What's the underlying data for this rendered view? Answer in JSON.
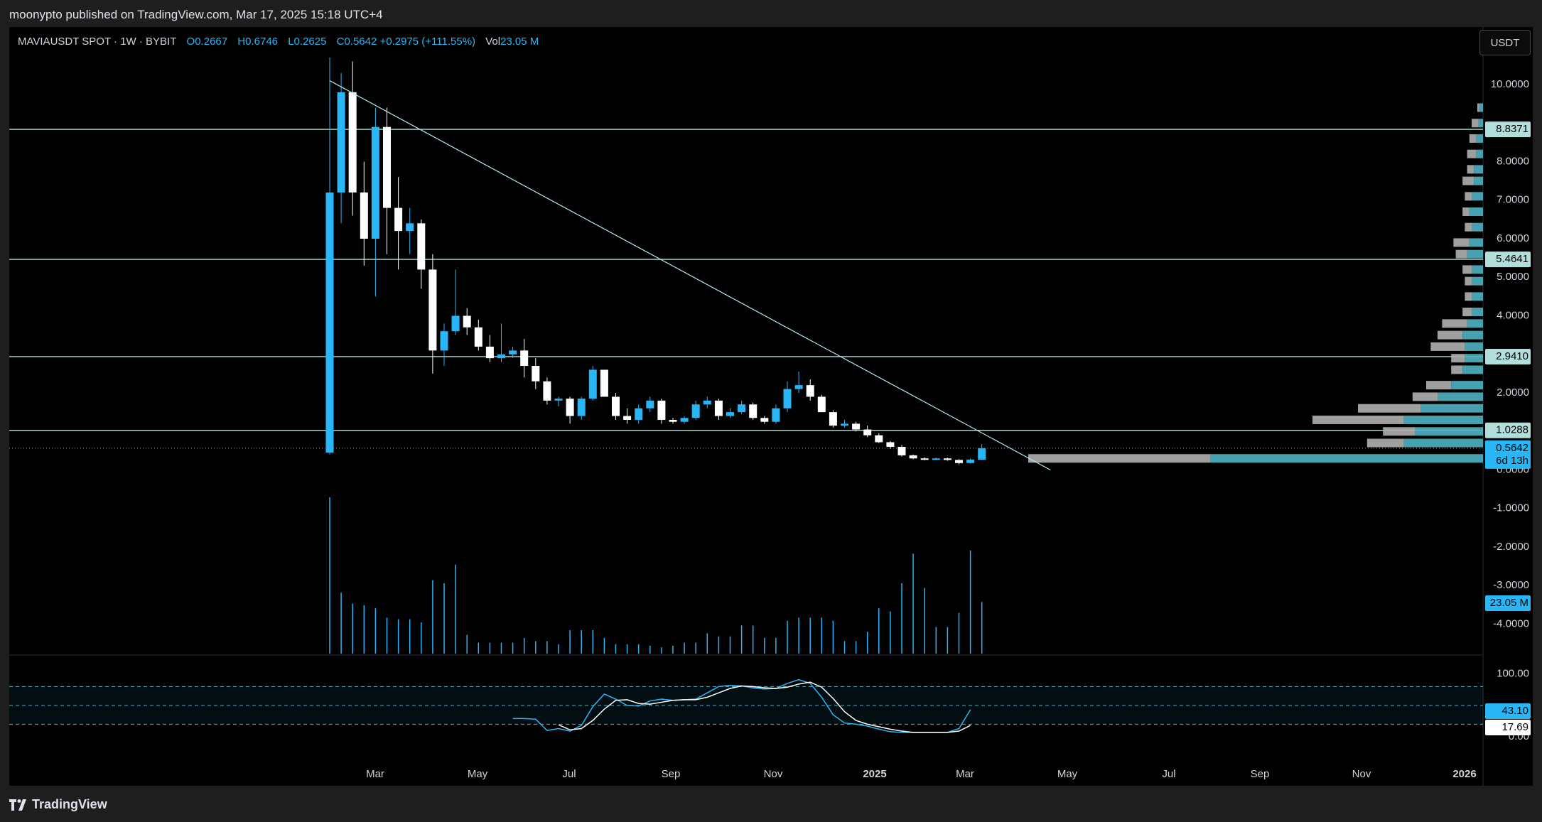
{
  "header": {
    "publisher_line": "moonypto published on TradingView.com, Mar 17, 2025 15:18 UTC+4"
  },
  "legend": {
    "symbol": "MAVIAUSDT SPOT · 1W · BYBIT",
    "o_label": "O",
    "o": "0.2667",
    "h_label": "H",
    "h": "0.6746",
    "l_label": "L",
    "l": "0.2625",
    "c_label": "C",
    "c": "0.5642",
    "change": "+0.2975 (+111.55%)",
    "vol_label": "Vol",
    "vol": "23.05 M"
  },
  "currency_button": "USDT",
  "footer": {
    "brand": "TradingView"
  },
  "colors": {
    "up": "#29b6f6",
    "down": "#ffffff",
    "hline": "#a8e0d8",
    "trend": "#b2ebf2",
    "stoch_k": "#29b6f6",
    "stoch_d": "#ffffff"
  },
  "chart_data": {
    "type": "candlestick",
    "x_ticks": [
      "Mar",
      "May",
      "Jul",
      "Sep",
      "Nov",
      "2025",
      "Mar",
      "May",
      "Jul",
      "Sep",
      "Nov",
      "2026"
    ],
    "y_ticks": [
      "10.0000",
      "8.0000",
      "7.0000",
      "6.0000",
      "5.0000",
      "4.0000",
      "2.0000",
      "0.0000",
      "-1.0000",
      "-2.0000",
      "-3.0000",
      "-4.0000"
    ],
    "stoch_ticks": [
      "100.00",
      "0.00"
    ],
    "price_tags": [
      {
        "value": 8.8371,
        "label": "8.8371"
      },
      {
        "value": 5.4641,
        "label": "5.4641"
      },
      {
        "value": 2.941,
        "label": "2.9410"
      },
      {
        "value": 1.0288,
        "label": "1.0288"
      }
    ],
    "last_price": {
      "value": 0.5642,
      "label": "0.5642",
      "countdown": "6d 13h"
    },
    "volume_tag": "23.05 M",
    "stoch_tags": {
      "k": "43.10",
      "d": "17.69"
    },
    "trendline": {
      "from": [
        "2024-02-05",
        10.1
      ],
      "to": [
        "2025-04-21",
        0.0
      ]
    },
    "candles": [
      {
        "d": "2024-02-05",
        "o": 0.45,
        "h": 10.7,
        "l": 0.4,
        "c": 7.2,
        "v": 100
      },
      {
        "d": "2024-02-12",
        "o": 7.2,
        "h": 10.3,
        "l": 6.4,
        "c": 9.8,
        "v": 39
      },
      {
        "d": "2024-02-19",
        "o": 9.8,
        "h": 10.6,
        "l": 6.6,
        "c": 7.2,
        "v": 32
      },
      {
        "d": "2024-02-26",
        "o": 7.2,
        "h": 8.0,
        "l": 5.3,
        "c": 6.0,
        "v": 31
      },
      {
        "d": "2024-03-04",
        "o": 6.0,
        "h": 9.4,
        "l": 4.5,
        "c": 8.9,
        "v": 29
      },
      {
        "d": "2024-03-11",
        "o": 8.9,
        "h": 9.4,
        "l": 5.6,
        "c": 6.8,
        "v": 23
      },
      {
        "d": "2024-03-18",
        "o": 6.8,
        "h": 7.6,
        "l": 5.2,
        "c": 6.2,
        "v": 22
      },
      {
        "d": "2024-03-25",
        "o": 6.2,
        "h": 6.8,
        "l": 5.6,
        "c": 6.4,
        "v": 22
      },
      {
        "d": "2024-04-01",
        "o": 6.4,
        "h": 6.5,
        "l": 4.7,
        "c": 5.2,
        "v": 20
      },
      {
        "d": "2024-04-08",
        "o": 5.2,
        "h": 5.6,
        "l": 2.5,
        "c": 3.1,
        "v": 47
      },
      {
        "d": "2024-04-15",
        "o": 3.1,
        "h": 3.8,
        "l": 2.7,
        "c": 3.6,
        "v": 45
      },
      {
        "d": "2024-04-22",
        "o": 3.6,
        "h": 5.2,
        "l": 3.5,
        "c": 4.0,
        "v": 57
      },
      {
        "d": "2024-04-29",
        "o": 4.0,
        "h": 4.2,
        "l": 3.5,
        "c": 3.7,
        "v": 12
      },
      {
        "d": "2024-05-06",
        "o": 3.7,
        "h": 3.9,
        "l": 3.1,
        "c": 3.2,
        "v": 7
      },
      {
        "d": "2024-05-13",
        "o": 3.2,
        "h": 3.5,
        "l": 2.8,
        "c": 2.9,
        "v": 7
      },
      {
        "d": "2024-05-20",
        "o": 2.9,
        "h": 3.8,
        "l": 2.8,
        "c": 3.0,
        "v": 7
      },
      {
        "d": "2024-05-27",
        "o": 3.0,
        "h": 3.2,
        "l": 2.9,
        "c": 3.1,
        "v": 7
      },
      {
        "d": "2024-06-03",
        "o": 3.1,
        "h": 3.4,
        "l": 2.4,
        "c": 2.7,
        "v": 10
      },
      {
        "d": "2024-06-10",
        "o": 2.7,
        "h": 2.9,
        "l": 2.1,
        "c": 2.3,
        "v": 8
      },
      {
        "d": "2024-06-17",
        "o": 2.3,
        "h": 2.4,
        "l": 1.7,
        "c": 1.8,
        "v": 8
      },
      {
        "d": "2024-06-24",
        "o": 1.8,
        "h": 1.9,
        "l": 1.65,
        "c": 1.85,
        "v": 6
      },
      {
        "d": "2024-07-01",
        "o": 1.85,
        "h": 1.9,
        "l": 1.2,
        "c": 1.4,
        "v": 15
      },
      {
        "d": "2024-07-08",
        "o": 1.4,
        "h": 1.9,
        "l": 1.3,
        "c": 1.85,
        "v": 15
      },
      {
        "d": "2024-07-15",
        "o": 1.85,
        "h": 2.7,
        "l": 1.8,
        "c": 2.6,
        "v": 15
      },
      {
        "d": "2024-07-22",
        "o": 2.6,
        "h": 2.6,
        "l": 1.9,
        "c": 1.9,
        "v": 10
      },
      {
        "d": "2024-07-29",
        "o": 1.9,
        "h": 2.0,
        "l": 1.3,
        "c": 1.4,
        "v": 6
      },
      {
        "d": "2024-08-05",
        "o": 1.4,
        "h": 1.6,
        "l": 1.2,
        "c": 1.3,
        "v": 6
      },
      {
        "d": "2024-08-12",
        "o": 1.3,
        "h": 1.7,
        "l": 1.2,
        "c": 1.6,
        "v": 6
      },
      {
        "d": "2024-08-19",
        "o": 1.6,
        "h": 1.9,
        "l": 1.5,
        "c": 1.8,
        "v": 5
      },
      {
        "d": "2024-08-26",
        "o": 1.8,
        "h": 1.85,
        "l": 1.2,
        "c": 1.3,
        "v": 4
      },
      {
        "d": "2024-09-02",
        "o": 1.3,
        "h": 1.35,
        "l": 1.2,
        "c": 1.25,
        "v": 5
      },
      {
        "d": "2024-09-09",
        "o": 1.25,
        "h": 1.4,
        "l": 1.2,
        "c": 1.35,
        "v": 7
      },
      {
        "d": "2024-09-16",
        "o": 1.35,
        "h": 1.8,
        "l": 1.3,
        "c": 1.7,
        "v": 7
      },
      {
        "d": "2024-09-23",
        "o": 1.7,
        "h": 1.9,
        "l": 1.6,
        "c": 1.8,
        "v": 13
      },
      {
        "d": "2024-09-30",
        "o": 1.8,
        "h": 1.85,
        "l": 1.3,
        "c": 1.4,
        "v": 11
      },
      {
        "d": "2024-10-07",
        "o": 1.4,
        "h": 1.6,
        "l": 1.35,
        "c": 1.5,
        "v": 11
      },
      {
        "d": "2024-10-14",
        "o": 1.5,
        "h": 1.8,
        "l": 1.45,
        "c": 1.7,
        "v": 18
      },
      {
        "d": "2024-10-21",
        "o": 1.7,
        "h": 1.75,
        "l": 1.3,
        "c": 1.35,
        "v": 18
      },
      {
        "d": "2024-10-28",
        "o": 1.35,
        "h": 1.4,
        "l": 1.2,
        "c": 1.25,
        "v": 10
      },
      {
        "d": "2024-11-04",
        "o": 1.25,
        "h": 1.7,
        "l": 1.2,
        "c": 1.6,
        "v": 10
      },
      {
        "d": "2024-11-11",
        "o": 1.6,
        "h": 2.3,
        "l": 1.5,
        "c": 2.1,
        "v": 21
      },
      {
        "d": "2024-11-18",
        "o": 2.1,
        "h": 2.55,
        "l": 2.0,
        "c": 2.2,
        "v": 23
      },
      {
        "d": "2024-11-25",
        "o": 2.2,
        "h": 2.35,
        "l": 1.8,
        "c": 1.9,
        "v": 23
      },
      {
        "d": "2024-12-02",
        "o": 1.9,
        "h": 1.95,
        "l": 1.5,
        "c": 1.5,
        "v": 23
      },
      {
        "d": "2024-12-09",
        "o": 1.5,
        "h": 1.55,
        "l": 1.1,
        "c": 1.15,
        "v": 21
      },
      {
        "d": "2024-12-16",
        "o": 1.15,
        "h": 1.3,
        "l": 1.1,
        "c": 1.2,
        "v": 8
      },
      {
        "d": "2024-12-23",
        "o": 1.2,
        "h": 1.25,
        "l": 1.0,
        "c": 1.05,
        "v": 8
      },
      {
        "d": "2024-12-30",
        "o": 1.05,
        "h": 1.15,
        "l": 0.85,
        "c": 0.9,
        "v": 14
      },
      {
        "d": "2025-01-06",
        "o": 0.9,
        "h": 0.95,
        "l": 0.7,
        "c": 0.72,
        "v": 29
      },
      {
        "d": "2025-01-13",
        "o": 0.72,
        "h": 0.75,
        "l": 0.55,
        "c": 0.6,
        "v": 27
      },
      {
        "d": "2025-01-20",
        "o": 0.6,
        "h": 0.65,
        "l": 0.35,
        "c": 0.38,
        "v": 45
      },
      {
        "d": "2025-01-27",
        "o": 0.38,
        "h": 0.4,
        "l": 0.28,
        "c": 0.3,
        "v": 64
      },
      {
        "d": "2025-02-03",
        "o": 0.3,
        "h": 0.33,
        "l": 0.25,
        "c": 0.28,
        "v": 42
      },
      {
        "d": "2025-02-10",
        "o": 0.28,
        "h": 0.32,
        "l": 0.26,
        "c": 0.3,
        "v": 17
      },
      {
        "d": "2025-02-17",
        "o": 0.3,
        "h": 0.32,
        "l": 0.24,
        "c": 0.26,
        "v": 17
      },
      {
        "d": "2025-02-24",
        "o": 0.26,
        "h": 0.28,
        "l": 0.15,
        "c": 0.18,
        "v": 26
      },
      {
        "d": "2025-03-03",
        "o": 0.18,
        "h": 0.3,
        "l": 0.16,
        "c": 0.27,
        "v": 66
      },
      {
        "d": "2025-03-10",
        "o": 0.2667,
        "h": 0.6746,
        "l": 0.2625,
        "c": 0.5642,
        "v": 33
      }
    ],
    "stoch": {
      "k": [
        [
          16,
          29
        ],
        [
          17,
          29
        ],
        [
          18,
          28
        ],
        [
          19,
          10
        ],
        [
          20,
          13
        ],
        [
          21,
          9
        ],
        [
          22,
          18
        ],
        [
          23,
          48
        ],
        [
          24,
          68
        ],
        [
          25,
          60
        ],
        [
          26,
          50
        ],
        [
          27,
          49
        ],
        [
          28,
          57
        ],
        [
          29,
          60
        ],
        [
          30,
          58
        ],
        [
          31,
          59
        ],
        [
          32,
          60
        ],
        [
          33,
          70
        ],
        [
          34,
          80
        ],
        [
          35,
          82
        ],
        [
          36,
          81
        ],
        [
          37,
          78
        ],
        [
          38,
          76
        ],
        [
          39,
          77
        ],
        [
          40,
          85
        ],
        [
          41,
          91
        ],
        [
          42,
          85
        ],
        [
          43,
          63
        ],
        [
          44,
          35
        ],
        [
          45,
          22
        ],
        [
          46,
          20
        ],
        [
          47,
          17
        ],
        [
          48,
          12
        ],
        [
          49,
          8
        ],
        [
          50,
          7
        ],
        [
          51,
          7
        ],
        [
          52,
          7
        ],
        [
          53,
          7
        ],
        [
          54,
          7
        ],
        [
          55,
          13
        ],
        [
          56,
          43
        ]
      ],
      "d": [
        [
          20,
          19
        ],
        [
          21,
          11
        ],
        [
          22,
          13
        ],
        [
          23,
          26
        ],
        [
          24,
          44
        ],
        [
          25,
          58
        ],
        [
          26,
          59
        ],
        [
          27,
          53
        ],
        [
          28,
          52
        ],
        [
          29,
          55
        ],
        [
          30,
          58
        ],
        [
          31,
          59
        ],
        [
          32,
          59
        ],
        [
          33,
          63
        ],
        [
          34,
          70
        ],
        [
          35,
          77
        ],
        [
          36,
          81
        ],
        [
          37,
          80
        ],
        [
          38,
          78
        ],
        [
          39,
          77
        ],
        [
          40,
          79
        ],
        [
          41,
          84
        ],
        [
          42,
          87
        ],
        [
          43,
          79
        ],
        [
          44,
          61
        ],
        [
          45,
          40
        ],
        [
          46,
          26
        ],
        [
          47,
          20
        ],
        [
          48,
          16
        ],
        [
          49,
          12
        ],
        [
          50,
          9
        ],
        [
          51,
          7
        ],
        [
          52,
          7
        ],
        [
          53,
          7
        ],
        [
          54,
          7
        ],
        [
          55,
          9
        ],
        [
          56,
          18
        ]
      ]
    },
    "volume_profile": [
      {
        "p": 0.3,
        "up": 240,
        "down": 160
      },
      {
        "p": 0.7,
        "up": 70,
        "down": 32
      },
      {
        "p": 1.0,
        "up": 60,
        "down": 28
      },
      {
        "p": 1.3,
        "up": 70,
        "down": 80
      },
      {
        "p": 1.6,
        "up": 55,
        "down": 55
      },
      {
        "p": 1.9,
        "up": 40,
        "down": 22
      },
      {
        "p": 2.2,
        "up": 28,
        "down": 22
      },
      {
        "p": 2.6,
        "up": 18,
        "down": 10
      },
      {
        "p": 2.9,
        "up": 16,
        "down": 12
      },
      {
        "p": 3.2,
        "up": 16,
        "down": 30
      },
      {
        "p": 3.5,
        "up": 18,
        "down": 22
      },
      {
        "p": 3.8,
        "up": 14,
        "down": 22
      },
      {
        "p": 4.1,
        "up": 10,
        "down": 8
      },
      {
        "p": 4.5,
        "up": 10,
        "down": 6
      },
      {
        "p": 4.9,
        "up": 10,
        "down": 6
      },
      {
        "p": 5.2,
        "up": 10,
        "down": 8
      },
      {
        "p": 5.6,
        "up": 14,
        "down": 10
      },
      {
        "p": 5.9,
        "up": 12,
        "down": 14
      },
      {
        "p": 6.3,
        "up": 10,
        "down": 6
      },
      {
        "p": 6.7,
        "up": 12,
        "down": 6
      },
      {
        "p": 7.1,
        "up": 10,
        "down": 6
      },
      {
        "p": 7.5,
        "up": 8,
        "down": 10
      },
      {
        "p": 7.8,
        "up": 8,
        "down": 6
      },
      {
        "p": 8.2,
        "up": 6,
        "down": 8
      },
      {
        "p": 8.6,
        "up": 6,
        "down": 6
      },
      {
        "p": 9.0,
        "up": 4,
        "down": 6
      },
      {
        "p": 9.4,
        "up": 3,
        "down": 2
      }
    ]
  }
}
